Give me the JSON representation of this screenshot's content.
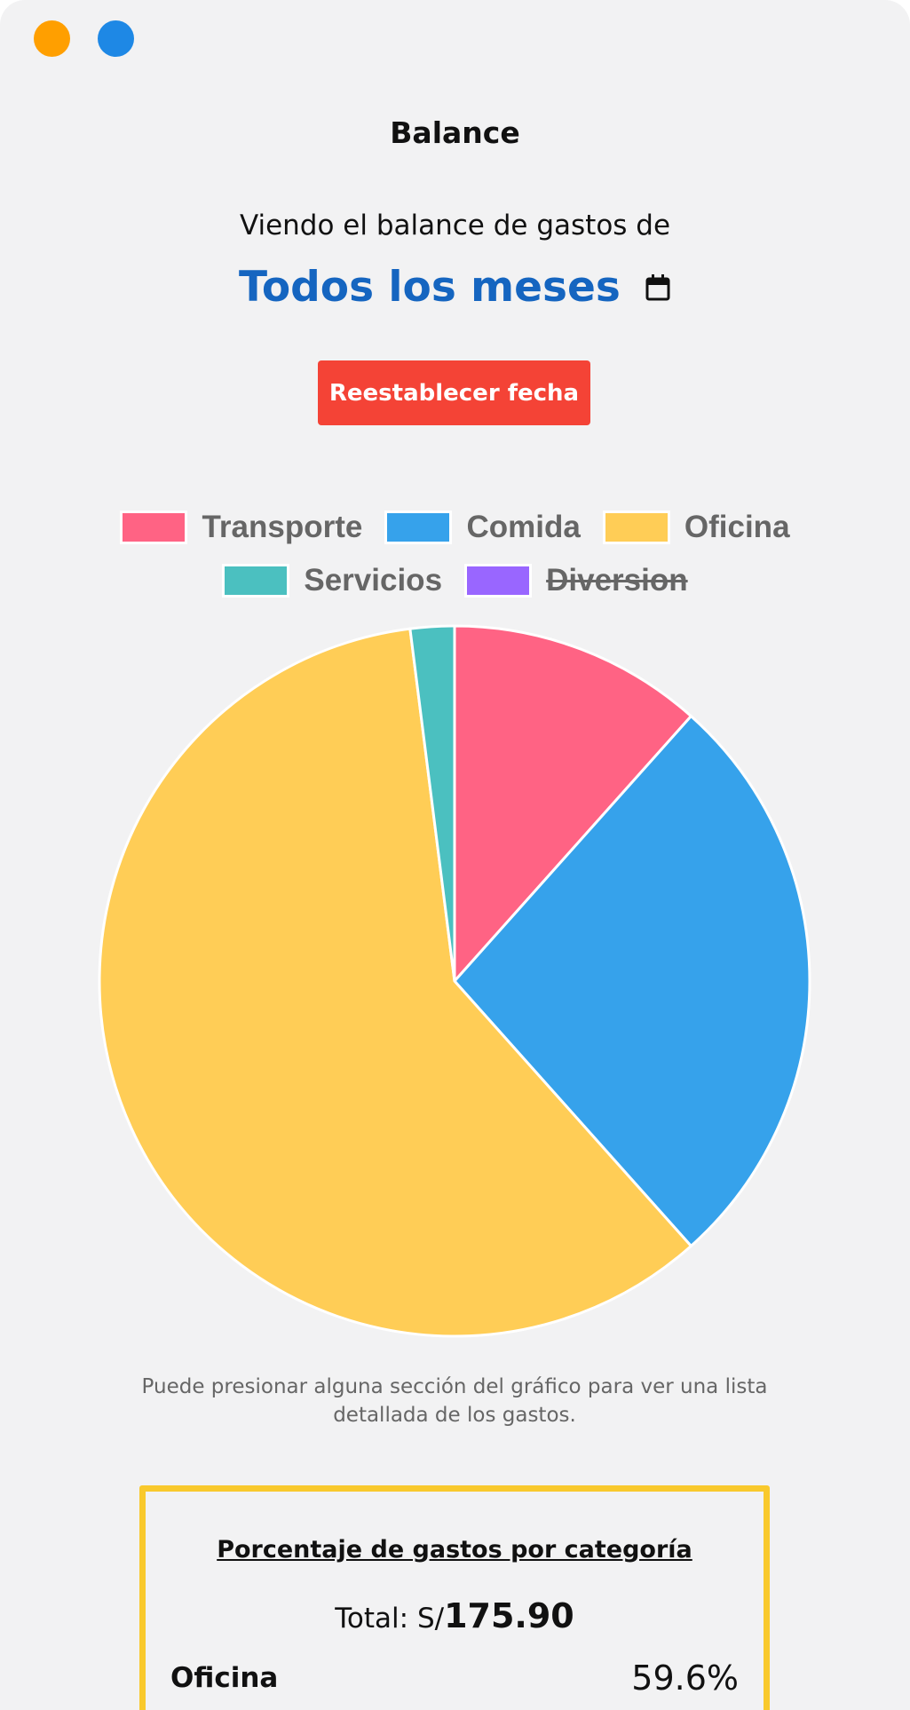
{
  "window": {
    "controls": [
      {
        "name": "minimize",
        "color": "#ff9f00"
      },
      {
        "name": "maximize",
        "color": "#1e88e5"
      }
    ]
  },
  "header": {
    "title": "Balance",
    "subtitle": "Viendo el balance de gastos de",
    "period": "Todos los meses",
    "period_color": "#1565c0",
    "reset_button": "Reestablecer fecha",
    "reset_color": "#f44336"
  },
  "chart_data": {
    "type": "pie",
    "categories": [
      "Transporte",
      "Comida",
      "Oficina",
      "Servicios",
      "Diversion"
    ],
    "values": [
      11.6,
      26.8,
      59.6,
      2.0,
      0
    ],
    "colors": [
      "#ff6384",
      "#36a2eb",
      "#ffcd56",
      "#4bc0c0",
      "#9966ff"
    ],
    "hidden": [
      false,
      false,
      false,
      false,
      true
    ],
    "legend_position": "top"
  },
  "hint": "Puede presionar alguna sección del gráfico para ver una lista detallada de los gastos.",
  "summary": {
    "title": "Porcentaje de gastos por categoría",
    "total_label": "Total: S/",
    "total_value": "175.90",
    "rows": [
      {
        "category": "Oficina",
        "percent": "59.6%"
      }
    ]
  }
}
